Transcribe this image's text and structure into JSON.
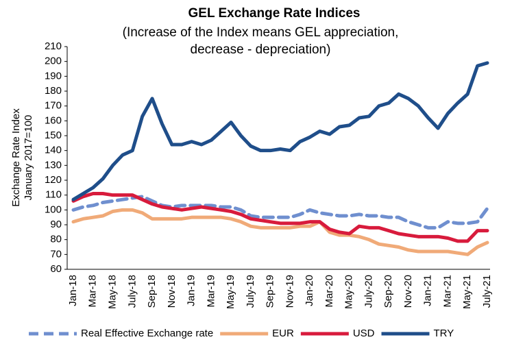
{
  "chart_data": {
    "type": "line",
    "title": "GEL  Exchange Rate Indices",
    "subtitle": [
      "(Increase of the Index means GEL appreciation,",
      "decrease - depreciation)"
    ],
    "y_label": [
      "Exchange Rate Index",
      "January 2017=100"
    ],
    "categories": [
      "Jan-18",
      null,
      "Mar-18",
      null,
      "May-18",
      null,
      "July-18",
      null,
      "Sep-18",
      null,
      "Nov-18",
      null,
      "Jan-19",
      null,
      "Mar-19",
      null,
      "May-19",
      null,
      "July-19",
      null,
      "Sep-19",
      null,
      "Nov-19",
      null,
      "Jan-20",
      null,
      "Mar-20",
      null,
      "May-20",
      null,
      "July-20",
      null,
      "Sep-20",
      null,
      "Nov-20",
      null,
      "Jan-21",
      null,
      "Mar-21",
      null,
      "May-21",
      null,
      "July-21"
    ],
    "ylim": [
      60,
      210
    ],
    "yticks": [
      60,
      70,
      80,
      90,
      100,
      110,
      120,
      130,
      140,
      150,
      160,
      170,
      180,
      190,
      200,
      210
    ],
    "grid": false,
    "legend": "bottom",
    "series": [
      {
        "name": "Real Effective Exchange rate",
        "color": "#6f8fcf",
        "dashed": true,
        "values": [
          100,
          102,
          103,
          105,
          106,
          107,
          108,
          109,
          106,
          103,
          102,
          103,
          103,
          103,
          103,
          102,
          102,
          100,
          96,
          95,
          95,
          95,
          95,
          97,
          100,
          98,
          97,
          96,
          96,
          97,
          96,
          96,
          95,
          95,
          92,
          90,
          88,
          88,
          92,
          91,
          91,
          92,
          101
        ]
      },
      {
        "name": "EUR",
        "color": "#f0aa78",
        "dashed": false,
        "values": [
          92,
          94,
          95,
          96,
          99,
          100,
          100,
          98,
          94,
          94,
          94,
          94,
          95,
          95,
          95,
          95,
          94,
          92,
          89,
          88,
          88,
          88,
          88,
          89,
          89,
          92,
          85,
          83,
          83,
          82,
          80,
          77,
          76,
          75,
          73,
          72,
          72,
          72,
          72,
          71,
          70,
          75,
          78
        ]
      },
      {
        "name": "USD",
        "color": "#d81b3c",
        "dashed": false,
        "values": [
          106,
          109,
          111,
          111,
          110,
          110,
          110,
          107,
          104,
          102,
          101,
          100,
          101,
          102,
          101,
          100,
          99,
          97,
          94,
          93,
          92,
          91,
          91,
          91,
          92,
          92,
          87,
          85,
          84,
          89,
          88,
          88,
          86,
          84,
          83,
          82,
          82,
          82,
          81,
          79,
          79,
          86,
          86
        ]
      },
      {
        "name": "TRY",
        "color": "#1f4e8a",
        "dashed": false,
        "values": [
          107,
          111,
          115,
          121,
          130,
          137,
          140,
          163,
          175,
          158,
          144,
          144,
          146,
          144,
          147,
          153,
          159,
          150,
          143,
          140,
          140,
          141,
          140,
          146,
          149,
          153,
          151,
          156,
          157,
          162,
          163,
          170,
          172,
          178,
          175,
          170,
          162,
          155,
          165,
          172,
          178,
          197,
          199
        ]
      }
    ]
  }
}
